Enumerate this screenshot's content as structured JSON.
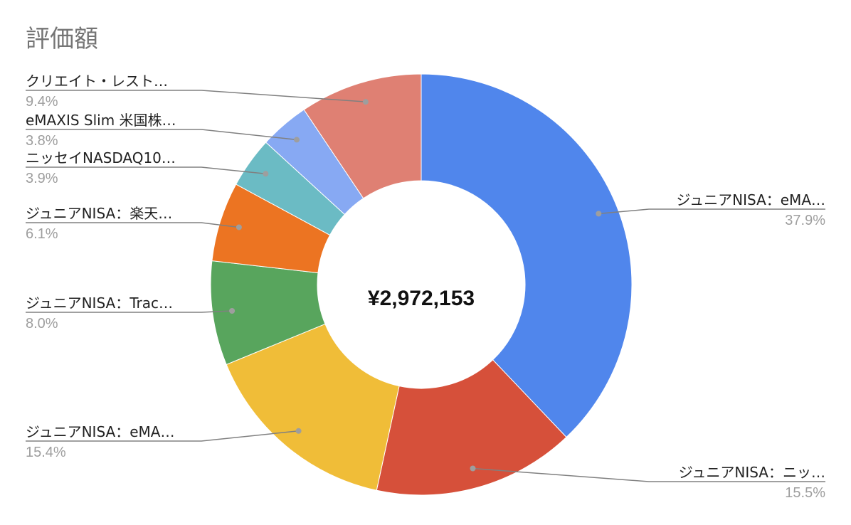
{
  "chart_data": {
    "type": "pie",
    "title": "評価額",
    "center_label": "¥2,972,153",
    "donut": true,
    "start": "top, clockwise",
    "slices": [
      {
        "label": "ジュニアNISA：eMA…",
        "percent_label": "37.9%",
        "value": 37.9,
        "color": "#5086EC"
      },
      {
        "label": "ジュニアNISA：ニッ…",
        "percent_label": "15.5%",
        "value": 15.5,
        "color": "#D6503A"
      },
      {
        "label": "ジュニアNISA：eMA…",
        "percent_label": "15.4%",
        "value": 15.4,
        "color": "#F0BD38"
      },
      {
        "label": "ジュニアNISA：Trac…",
        "percent_label": "8.0%",
        "value": 8.0,
        "color": "#58A55D"
      },
      {
        "label": "ジュニアNISA：楽天…",
        "percent_label": "6.1%",
        "value": 6.1,
        "color": "#EC7422"
      },
      {
        "label": "ニッセイNASDAQ10…",
        "percent_label": "3.9%",
        "value": 3.9,
        "color": "#6BBBC4"
      },
      {
        "label": "eMAXIS Slim 米国株…",
        "percent_label": "3.8%",
        "value": 3.8,
        "color": "#87A9F3"
      },
      {
        "label": "クリエイト・レスト…",
        "percent_label": "9.4%",
        "value": 9.4,
        "color": "#DF8073"
      }
    ]
  }
}
